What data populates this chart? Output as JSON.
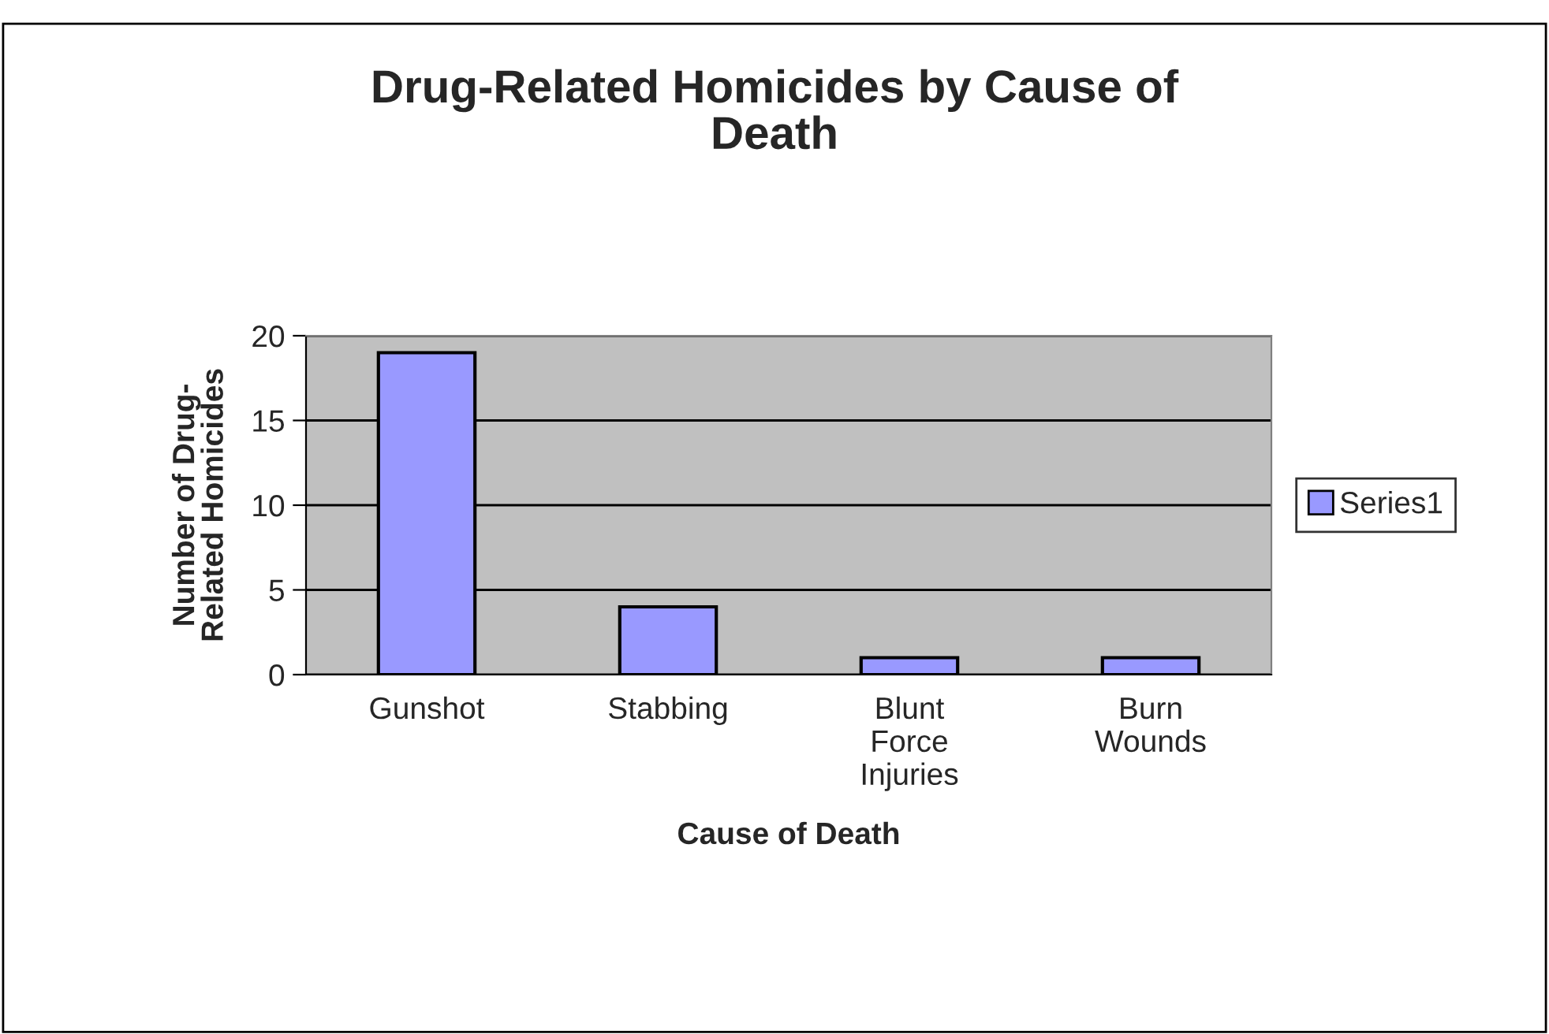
{
  "chart_data": {
    "type": "bar",
    "title": "Drug-Related Homicides by Cause of Death",
    "xlabel": "Cause of Death",
    "ylabel": "Number of Drug-Related Homicides",
    "categories": [
      "Gunshot",
      "Stabbing",
      "Blunt Force Injuries",
      "Burn Wounds"
    ],
    "series": [
      {
        "name": "Series1",
        "color": "#9999ff",
        "values": [
          19,
          4,
          1,
          1
        ]
      }
    ],
    "ylim": [
      0,
      20
    ],
    "yticks": [
      0,
      5,
      10,
      15,
      20
    ],
    "grid": "y",
    "legend": "right"
  }
}
